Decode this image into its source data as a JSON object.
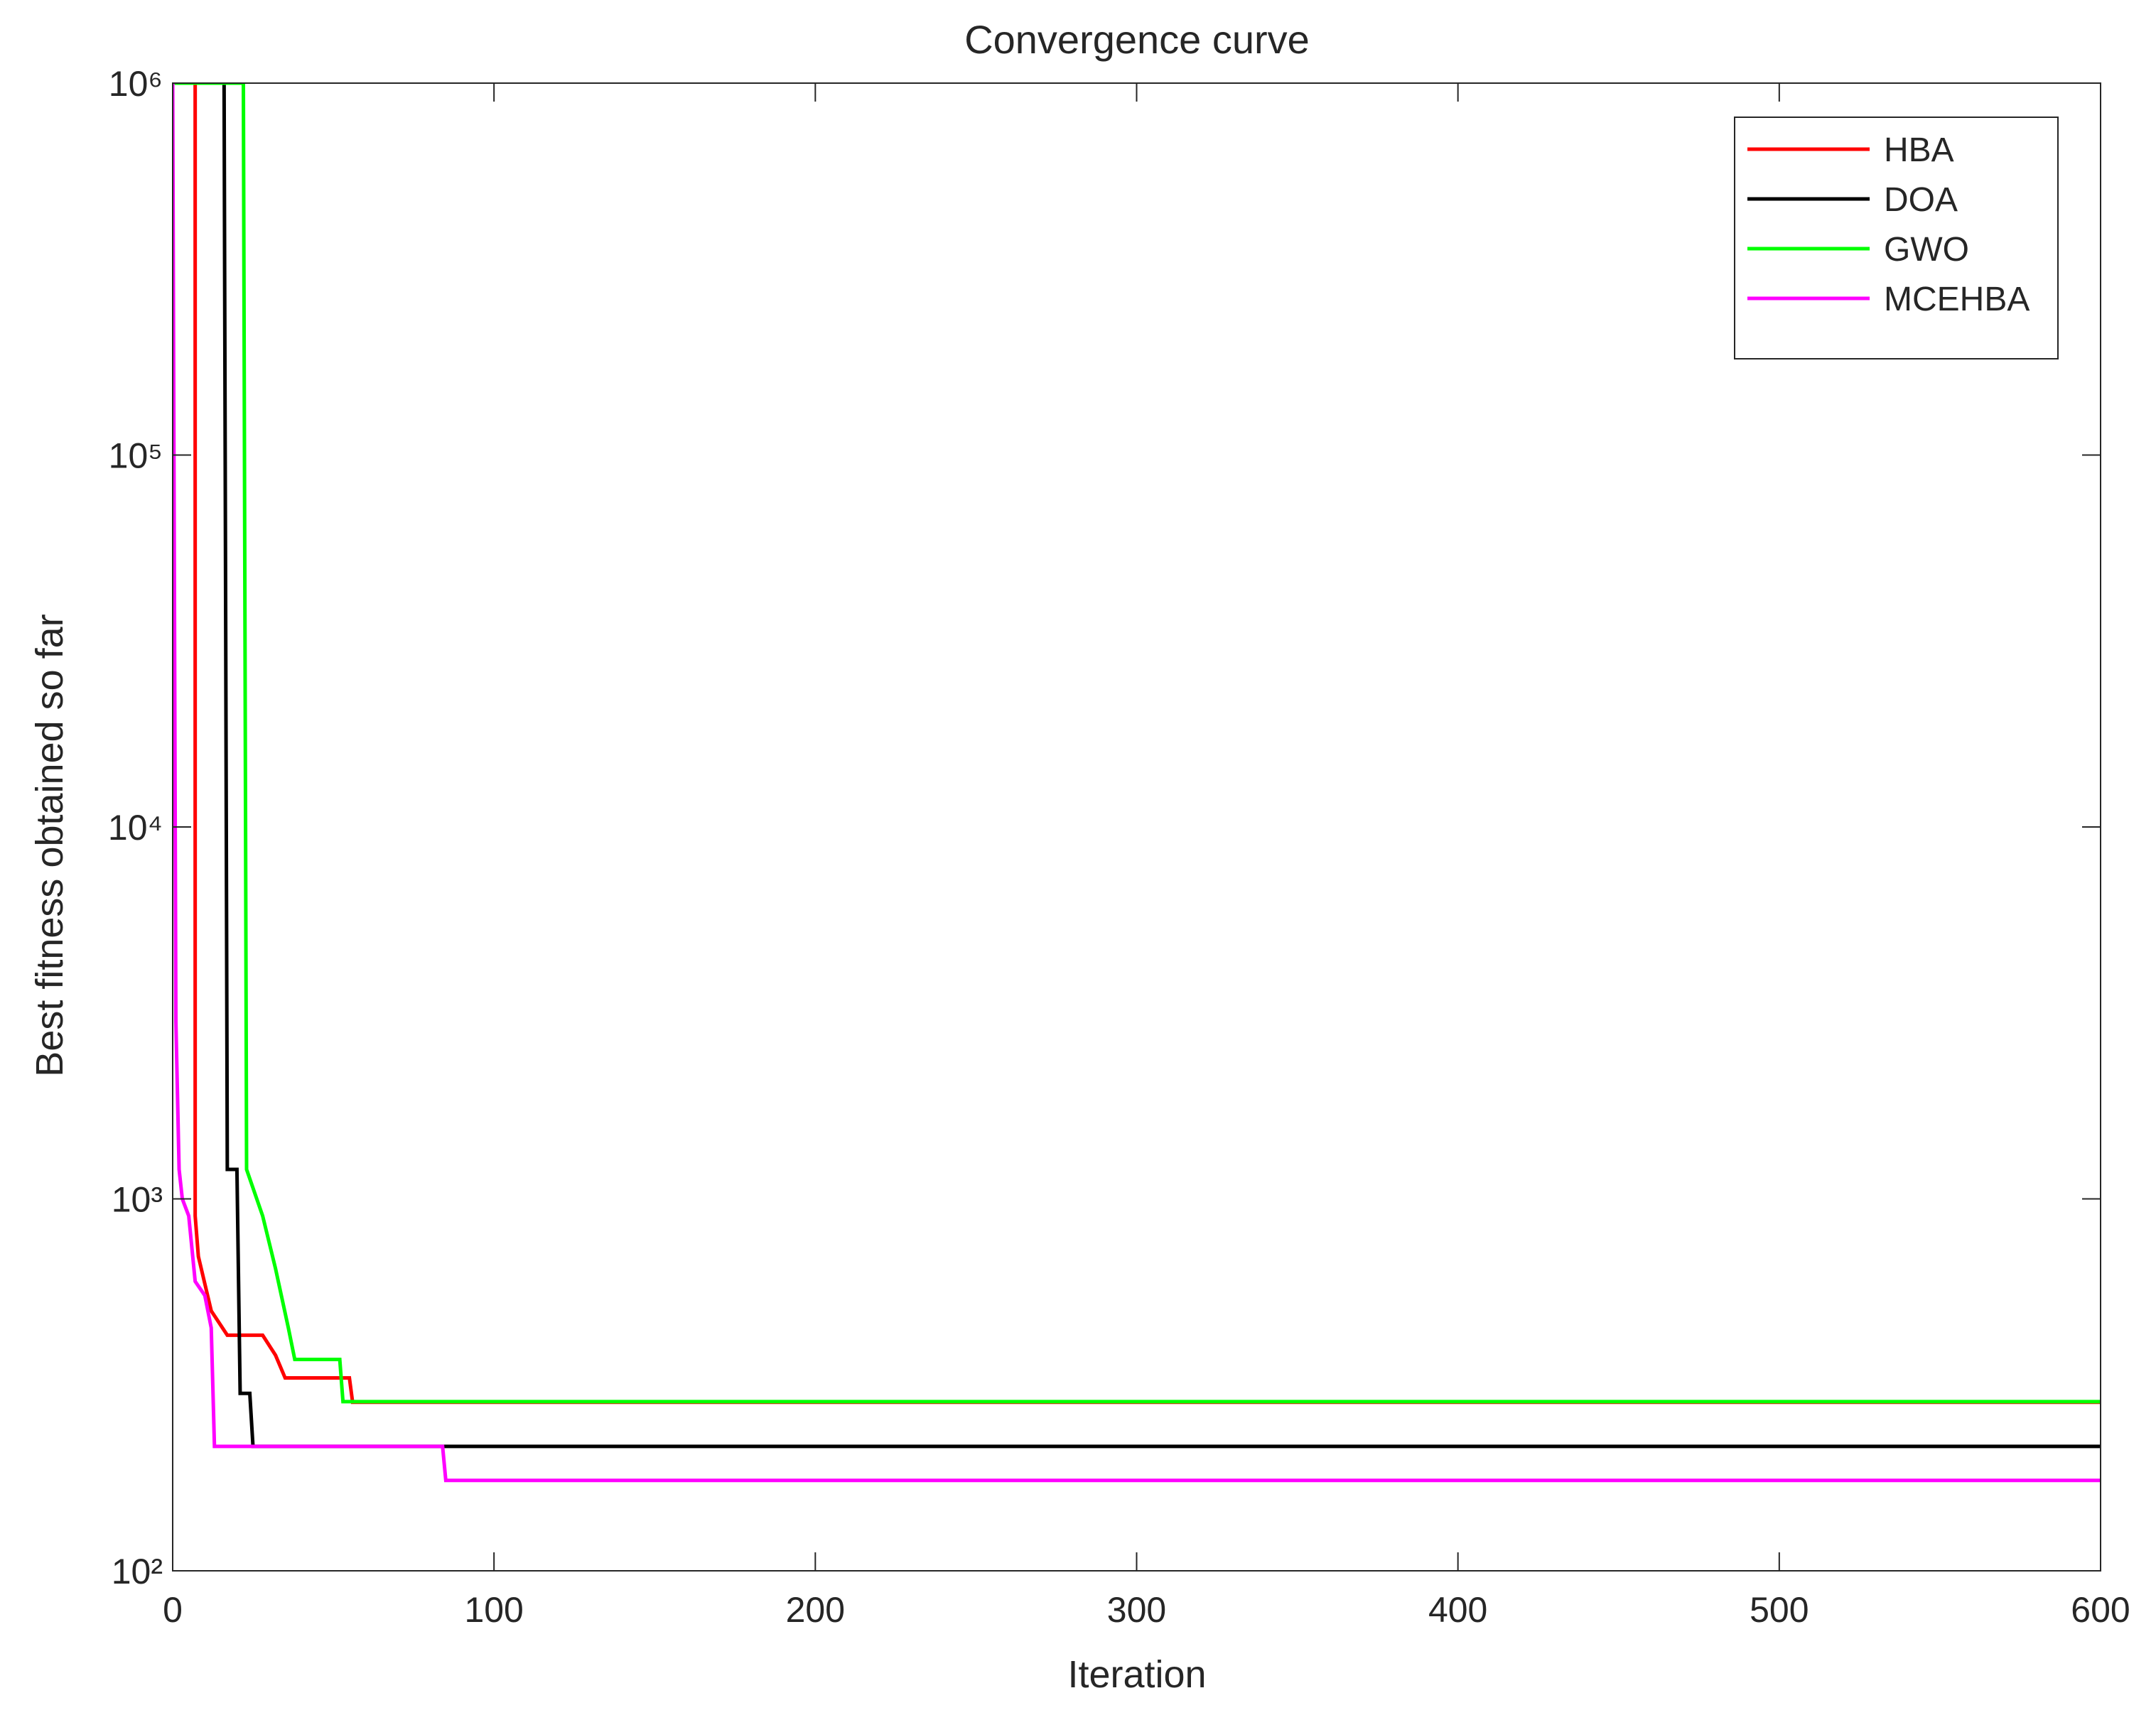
{
  "chart_data": {
    "type": "line",
    "title": "Convergence curve",
    "x_label": "Iteration",
    "y_label": "Best fitness obtained so far",
    "log_y": true,
    "legend_position": "upper right",
    "xlim": [
      0,
      600
    ],
    "xticks": [
      0,
      100,
      200,
      300,
      400,
      500,
      600
    ],
    "ylim": [
      100,
      1000000
    ],
    "yticks": [
      {
        "value": 100,
        "label": "10²"
      },
      {
        "value": 1000,
        "label": "10³"
      },
      {
        "value": 10000,
        "label": "10⁴"
      },
      {
        "value": 100000,
        "label": "10⁵"
      },
      {
        "value": 1000000,
        "label": "10⁶"
      }
    ],
    "series": [
      {
        "name": "HBA",
        "color": "#ff0000",
        "x": [
          0,
          7,
          7,
          8,
          12,
          17,
          28,
          32,
          35,
          55,
          56,
          600
        ],
        "values": [
          1000000,
          1000000,
          900,
          700,
          500,
          430,
          430,
          380,
          330,
          330,
          284,
          284
        ]
      },
      {
        "name": "DOA",
        "color": "#000000",
        "x": [
          0,
          16,
          17,
          20,
          21,
          24,
          25,
          600
        ],
        "values": [
          1000000,
          1000000,
          1200,
          1200,
          300,
          300,
          216,
          216
        ]
      },
      {
        "name": "GWO",
        "color": "#00ff00",
        "x": [
          0,
          22,
          23,
          28,
          32,
          36,
          38,
          52,
          53,
          600
        ],
        "values": [
          1000000,
          1000000,
          1200,
          900,
          650,
          450,
          370,
          370,
          285,
          285
        ]
      },
      {
        "name": "MCEHBA",
        "color": "#ff00ff",
        "x": [
          0,
          1,
          2,
          3,
          5,
          7,
          10,
          12,
          13,
          84,
          85,
          600
        ],
        "values": [
          1000000,
          3000,
          1200,
          1000,
          900,
          600,
          550,
          450,
          216,
          216,
          175,
          175
        ]
      }
    ]
  }
}
